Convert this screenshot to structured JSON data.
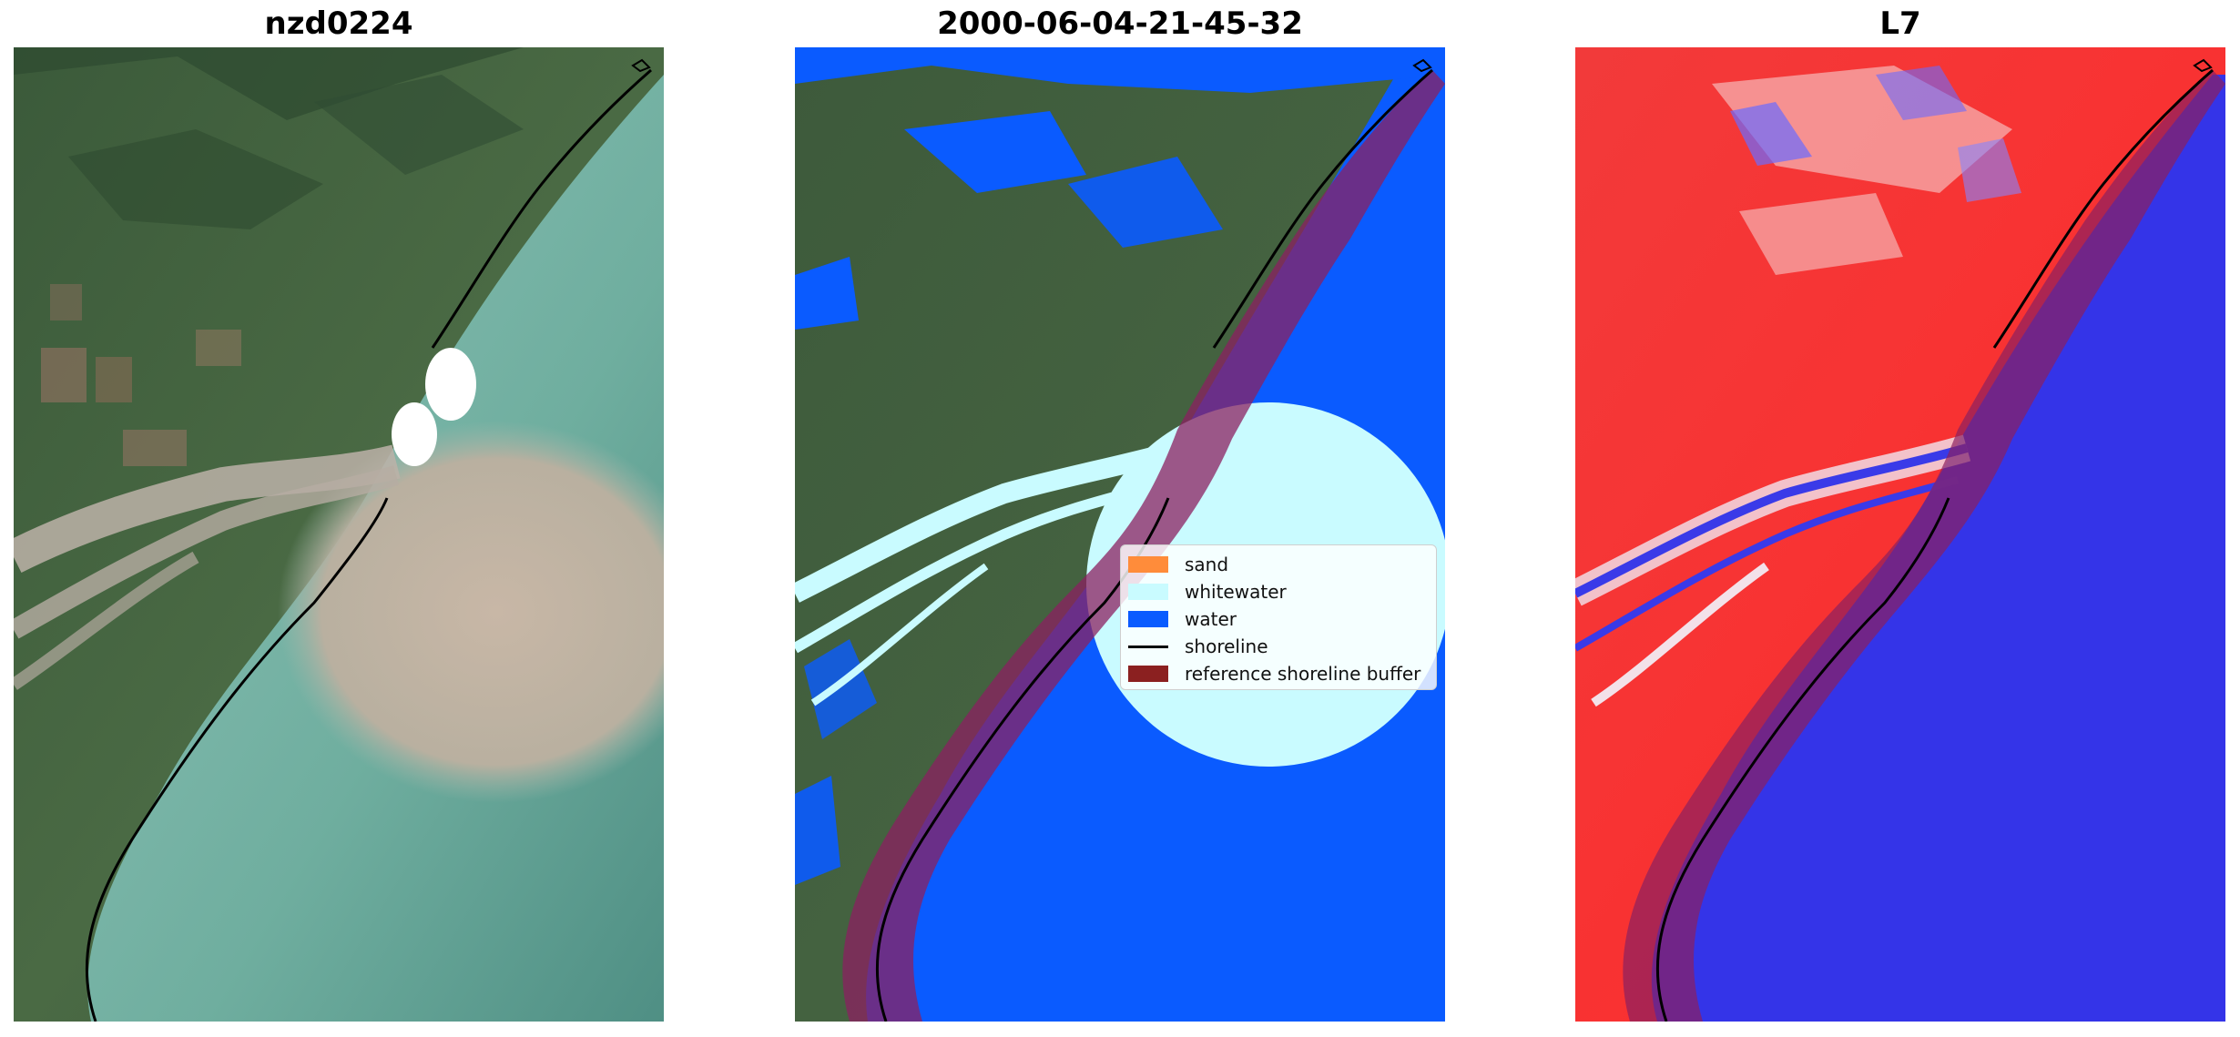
{
  "panels": [
    {
      "title": "nzd0224"
    },
    {
      "title": "2000-06-04-21-45-32"
    },
    {
      "title": "L7"
    }
  ],
  "legend": {
    "items": [
      {
        "label": "sand",
        "color": "#ff8c3a",
        "kind": "patch"
      },
      {
        "label": "whitewater",
        "color": "#c9fbff",
        "kind": "patch"
      },
      {
        "label": "water",
        "color": "#0a5bff",
        "kind": "patch"
      },
      {
        "label": "shoreline",
        "color": "#000000",
        "kind": "line"
      },
      {
        "label": "reference shoreline buffer",
        "color": "#8b2020",
        "kind": "patch"
      }
    ]
  }
}
